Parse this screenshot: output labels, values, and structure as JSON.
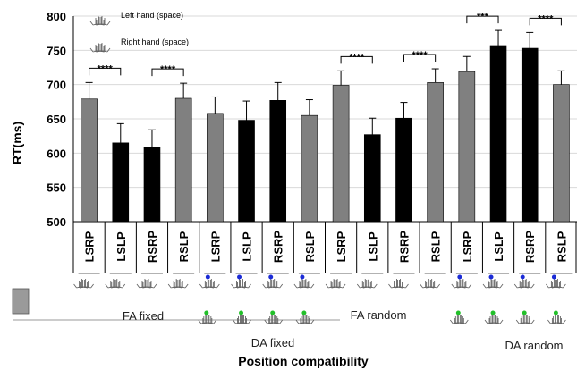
{
  "chart_data": {
    "type": "bar",
    "title": "",
    "ylabel": "RT(ms)",
    "xlabel": "Position compatibility",
    "ylim": [
      500,
      800
    ],
    "yticks": [
      500,
      550,
      600,
      650,
      700,
      750,
      800
    ],
    "categories": [
      "LSRP",
      "LSLP",
      "RSRP",
      "RSLP",
      "LSRP",
      "LSLP",
      "RSRP",
      "RSLP",
      "LSRP",
      "LSLP",
      "RSRP",
      "RSLP",
      "LSRP",
      "LSLP",
      "RSRP",
      "RSLP"
    ],
    "values": [
      679,
      615,
      609,
      680,
      658,
      648,
      677,
      655,
      699,
      627,
      651,
      703,
      719,
      757,
      753,
      700
    ],
    "errors": [
      24,
      28,
      25,
      22,
      24,
      28,
      26,
      23,
      21,
      24,
      23,
      20,
      22,
      22,
      23,
      20
    ],
    "bar_hand": [
      "left",
      "right",
      "right",
      "left",
      "left",
      "right",
      "right",
      "left",
      "left",
      "right",
      "right",
      "left",
      "left",
      "right",
      "right",
      "left"
    ],
    "colors": {
      "left": "#808080",
      "right": "#000000"
    },
    "legend": [
      {
        "label": "Left hand (space)",
        "icon": "left-hand-icon"
      },
      {
        "label": "Right hand (space)",
        "icon": "right-hand-icon"
      }
    ],
    "groups": [
      {
        "label": "FA fixed"
      },
      {
        "label": "DA fixed"
      },
      {
        "label": "FA random"
      },
      {
        "label": "DA random"
      }
    ],
    "significance": [
      {
        "from": 0,
        "to": 1,
        "label": "****"
      },
      {
        "from": 2,
        "to": 3,
        "label": "****"
      },
      {
        "from": 8,
        "to": 9,
        "label": "****"
      },
      {
        "from": 10,
        "to": 11,
        "label": "****"
      },
      {
        "from": 12,
        "to": 13,
        "label": "***"
      },
      {
        "from": 14,
        "to": 15,
        "label": "****"
      }
    ]
  }
}
